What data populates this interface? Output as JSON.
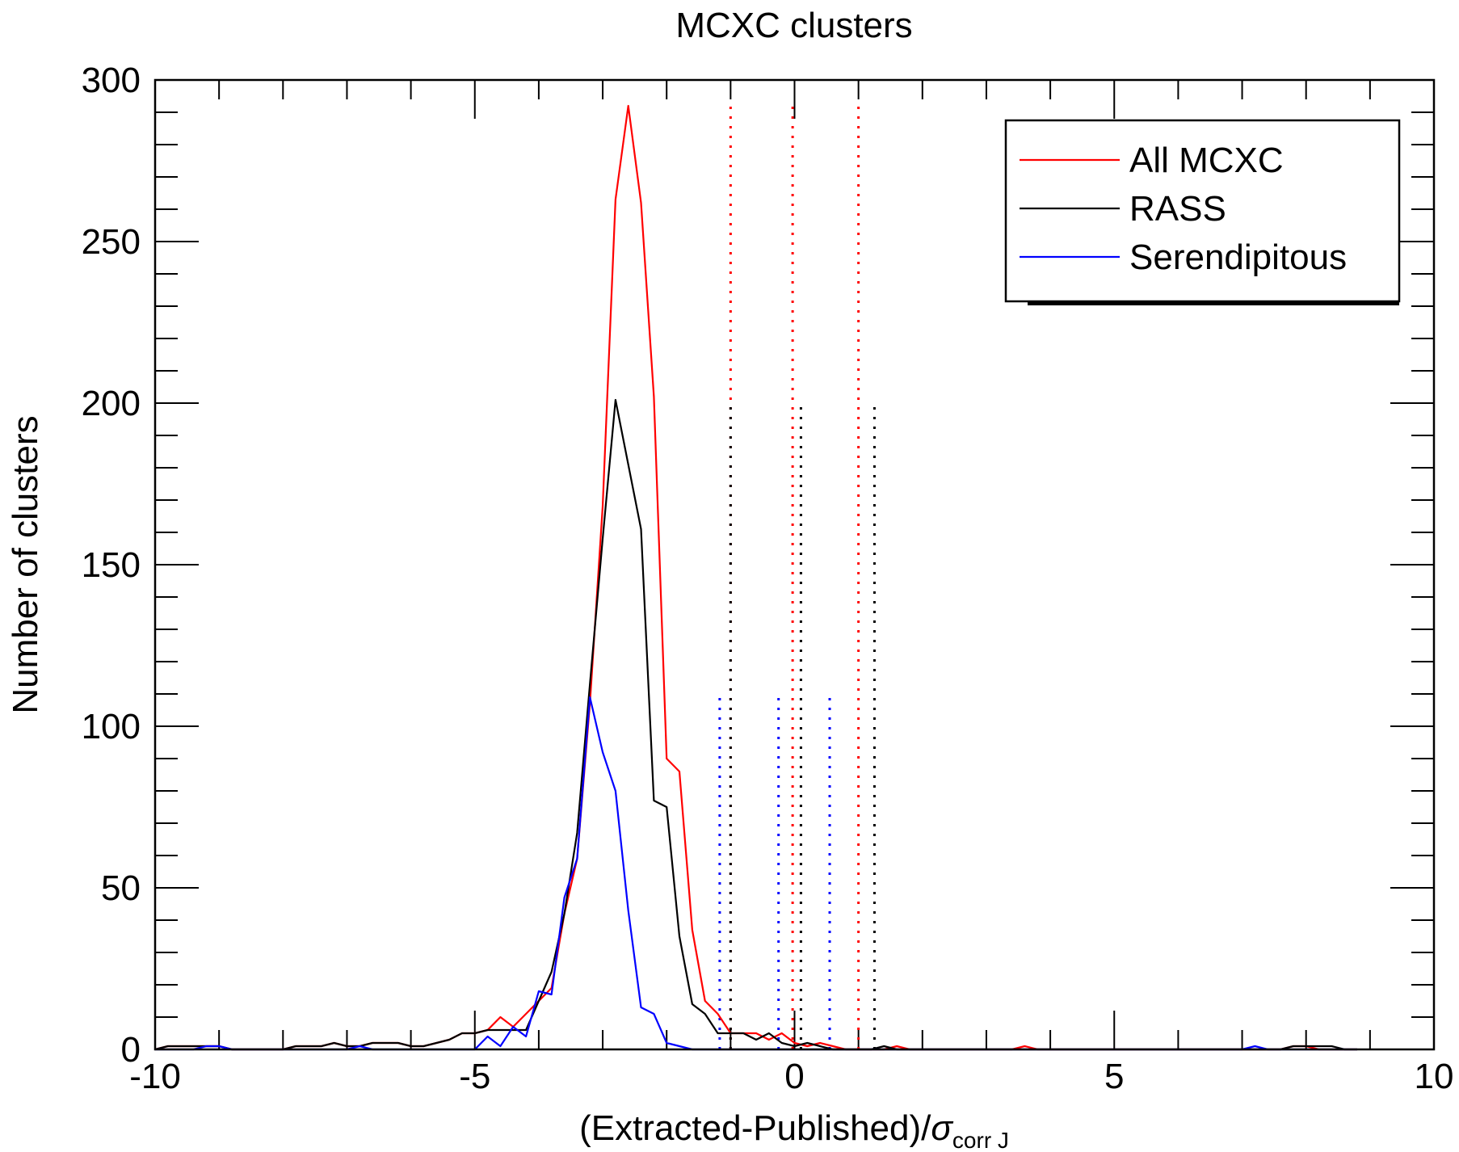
{
  "chart_data": {
    "type": "line",
    "title": "MCXC clusters",
    "xlabel": "(Extracted-Published)/",
    "xlabel_symbol": "σ",
    "xlabel_subscript": "corr J",
    "ylabel": "Number of clusters",
    "xlim": [
      -10,
      10
    ],
    "ylim": [
      0,
      300
    ],
    "x_ticks": [
      -10,
      -5,
      0,
      5,
      10
    ],
    "x_tick_labels": [
      "-10",
      "-5",
      "0",
      "5",
      "10"
    ],
    "y_ticks": [
      0,
      50,
      100,
      150,
      200,
      250,
      300
    ],
    "y_tick_labels": [
      "0",
      "50",
      "100",
      "150",
      "200",
      "250",
      "300"
    ],
    "legend_position": "top-right",
    "series": [
      {
        "name": "All MCXC",
        "color": "#ff0000",
        "x": [
          -10,
          -9.8,
          -9.6,
          -9.4,
          -9.2,
          -9,
          -8.8,
          -8.6,
          -8.4,
          -8.2,
          -8,
          -7.8,
          -7.6,
          -7.4,
          -7.2,
          -7,
          -6.8,
          -6.6,
          -6.4,
          -6.2,
          -6,
          -5.8,
          -5.6,
          -5.4,
          -5.2,
          -5,
          -4.8,
          -4.6,
          -4.4,
          -4.2,
          -4,
          -3.8,
          -3.6,
          -3.4,
          -3.2,
          -3,
          -2.8,
          -2.6,
          -2.4,
          -2.2,
          -2,
          -1.8,
          -1.6,
          -1.4,
          -1.2,
          -1,
          -0.8,
          -0.6,
          -0.4,
          -0.2,
          0,
          0.2,
          0.4,
          0.6,
          0.8,
          1,
          1.2,
          1.4,
          1.6,
          1.8,
          2,
          2.2,
          2.4,
          2.6,
          2.8,
          3,
          3.2,
          3.4,
          3.6,
          3.8,
          4,
          4.2,
          4.4,
          4.6,
          4.8,
          5,
          5.2,
          5.4,
          5.6,
          5.8,
          6,
          6.2,
          6.4,
          6.6,
          6.8,
          7,
          7.2,
          7.4,
          7.6,
          7.8,
          8,
          8.2,
          8.4,
          8.6,
          8.8
        ],
        "values": [
          0,
          1,
          1,
          1,
          1,
          1,
          0,
          0,
          0,
          0,
          0,
          1,
          1,
          1,
          2,
          1,
          1,
          2,
          2,
          2,
          1,
          1,
          2,
          3,
          5,
          5,
          6,
          10,
          7,
          11,
          15,
          19,
          42,
          59,
          107,
          168,
          263,
          292,
          262,
          202,
          90,
          86,
          37,
          15,
          11,
          5,
          5,
          5,
          3,
          5,
          2,
          1,
          2,
          1,
          0,
          0,
          0,
          0,
          1,
          0,
          0,
          0,
          0,
          0,
          0,
          0,
          0,
          0,
          1,
          0,
          0,
          0,
          0,
          0,
          0,
          0,
          0,
          0,
          0,
          0,
          0,
          0,
          0,
          0,
          0,
          0,
          0,
          0,
          0,
          1,
          1,
          0,
          0,
          0,
          0
        ]
      },
      {
        "name": "RASS",
        "color": "#000000",
        "x": [
          -10,
          -9.8,
          -9.6,
          -9.4,
          -9.2,
          -9,
          -8.8,
          -8.6,
          -8.4,
          -8.2,
          -8,
          -7.8,
          -7.6,
          -7.4,
          -7.2,
          -7,
          -6.8,
          -6.6,
          -6.4,
          -6.2,
          -6,
          -5.8,
          -5.6,
          -5.4,
          -5.2,
          -5,
          -4.8,
          -4.6,
          -4.4,
          -4.2,
          -4,
          -3.8,
          -3.6,
          -3.4,
          -3.2,
          -3,
          -2.8,
          -2.6,
          -2.4,
          -2.2,
          -2,
          -1.8,
          -1.6,
          -1.4,
          -1.2,
          -1,
          -0.8,
          -0.6,
          -0.4,
          -0.2,
          0,
          0.2,
          0.4,
          0.6,
          0.8,
          1,
          1.2,
          1.4,
          1.6,
          1.8,
          2,
          2.2,
          2.4,
          2.6,
          2.8,
          3,
          3.2,
          3.4,
          3.6,
          3.8,
          4,
          4.2,
          4.4,
          4.6,
          4.8,
          5,
          5.2,
          5.4,
          5.6,
          5.8,
          6,
          6.2,
          6.4,
          6.6,
          6.8,
          7,
          7.2,
          7.4,
          7.6,
          7.8,
          8,
          8.2,
          8.4,
          8.6,
          8.8
        ],
        "values": [
          0,
          1,
          1,
          1,
          1,
          1,
          0,
          0,
          0,
          0,
          0,
          1,
          1,
          1,
          2,
          1,
          1,
          2,
          2,
          2,
          1,
          1,
          2,
          3,
          5,
          5,
          6,
          6,
          6,
          6,
          15,
          24,
          42,
          67,
          113,
          158,
          201,
          181,
          161,
          77,
          75,
          35,
          14,
          11,
          5,
          5,
          5,
          3,
          5,
          2,
          1,
          2,
          1,
          0,
          0,
          0,
          0,
          1,
          0,
          0,
          0,
          0,
          0,
          0,
          0,
          0,
          0,
          0,
          0,
          0,
          0,
          0,
          0,
          0,
          0,
          0,
          0,
          0,
          0,
          0,
          0,
          0,
          0,
          0,
          0,
          0,
          0,
          0,
          0,
          1,
          1,
          1,
          1,
          0,
          0
        ]
      },
      {
        "name": "Serendipitous",
        "color": "#0000ff",
        "x": [
          -10,
          -9.8,
          -9.6,
          -9.4,
          -9.2,
          -9,
          -8.8,
          -8.6,
          -8.4,
          -8.2,
          -8,
          -7.8,
          -7.6,
          -7.4,
          -7.2,
          -7,
          -6.8,
          -6.6,
          -6.4,
          -6.2,
          -6,
          -5.8,
          -5.6,
          -5.4,
          -5.2,
          -5,
          -4.8,
          -4.6,
          -4.4,
          -4.2,
          -4,
          -3.8,
          -3.6,
          -3.4,
          -3.2,
          -3,
          -2.8,
          -2.6,
          -2.4,
          -2.2,
          -2,
          -1.8,
          -1.6,
          -1.4,
          -1.2,
          -1,
          -0.8,
          -0.6,
          -0.4,
          -0.2,
          0,
          0.2,
          0.4,
          0.6,
          0.8,
          1,
          1.2,
          1.4,
          1.6,
          1.8,
          2,
          2.2,
          2.4,
          2.6,
          2.8,
          3,
          3.2,
          3.4,
          3.6,
          3.8,
          4,
          4.2,
          4.4,
          4.6,
          4.8,
          5,
          5.2,
          5.4,
          5.6,
          5.8,
          6,
          6.2,
          6.4,
          6.6,
          6.8,
          7,
          7.2,
          7.4,
          7.6,
          7.8,
          8,
          8.2,
          8.4,
          8.6,
          8.8
        ],
        "values": [
          0,
          0,
          0,
          0,
          1,
          1,
          0,
          0,
          0,
          0,
          0,
          0,
          0,
          0,
          0,
          0,
          1,
          0,
          0,
          0,
          0,
          0,
          0,
          0,
          0,
          0,
          4,
          1,
          7,
          4,
          18,
          17,
          47,
          59,
          109,
          92,
          80,
          43,
          13,
          11,
          2,
          1,
          0,
          0,
          0,
          0,
          0,
          0,
          0,
          0,
          0,
          0,
          0,
          0,
          0,
          0,
          0,
          0,
          0,
          0,
          0,
          0,
          0,
          0,
          0,
          0,
          0,
          0,
          0,
          0,
          0,
          0,
          0,
          0,
          0,
          0,
          0,
          0,
          0,
          0,
          0,
          0,
          0,
          0,
          0,
          0,
          1,
          0,
          0,
          0,
          0,
          0,
          0,
          0,
          0
        ]
      }
    ],
    "reference_lines": [
      {
        "series": "All MCXC",
        "color": "#ff0000",
        "x": [
          -1.0,
          -0.03,
          1.0
        ],
        "top": 292
      },
      {
        "series": "RASS",
        "color": "#000000",
        "x": [
          -1.0,
          0.1,
          1.25
        ],
        "top": 201
      },
      {
        "series": "Serendipitous",
        "color": "#0000ff",
        "x": [
          -1.17,
          -0.25,
          0.55
        ],
        "top": 109
      }
    ]
  }
}
